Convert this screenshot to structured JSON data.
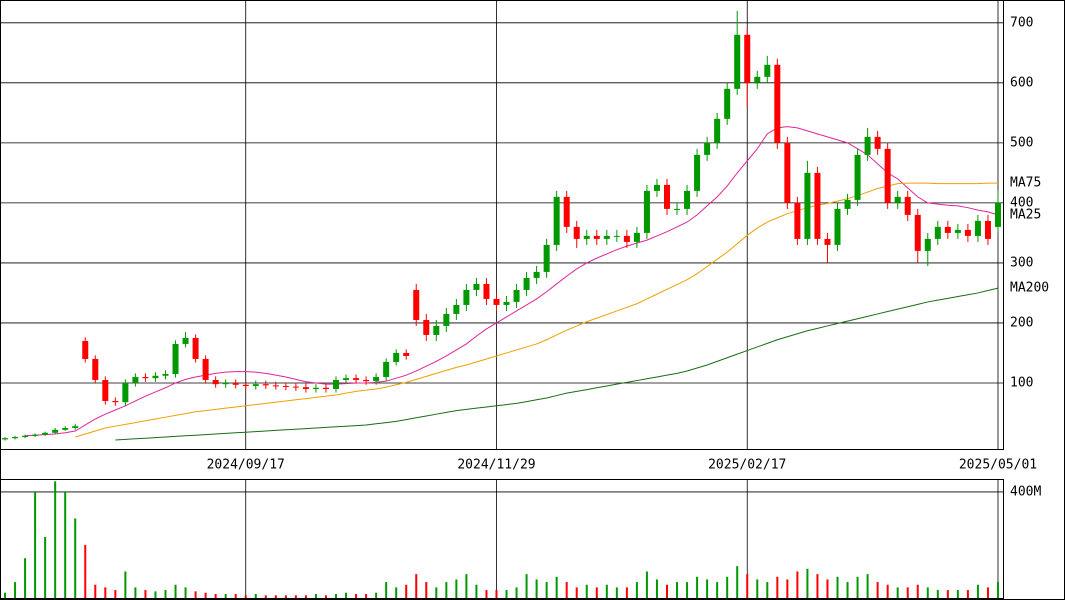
{
  "chart_data": [
    {
      "type": "candlestick",
      "categories": [
        null,
        null,
        null,
        null,
        null,
        null,
        null,
        null,
        null,
        null,
        null,
        null,
        null,
        null,
        null,
        null,
        null,
        null,
        null,
        null,
        null,
        null,
        null,
        null,
        "2024/09/17",
        null,
        null,
        null,
        null,
        null,
        null,
        null,
        null,
        null,
        null,
        null,
        null,
        null,
        null,
        null,
        null,
        null,
        null,
        null,
        null,
        null,
        null,
        null,
        null,
        "2024/11/29",
        null,
        null,
        null,
        null,
        null,
        null,
        null,
        null,
        null,
        null,
        null,
        null,
        null,
        null,
        null,
        null,
        null,
        null,
        null,
        null,
        null,
        null,
        null,
        null,
        "2025/02/17",
        null,
        null,
        null,
        null,
        null,
        null,
        null,
        null,
        null,
        null,
        null,
        null,
        null,
        null,
        null,
        null,
        null,
        null,
        null,
        null,
        null,
        null,
        null,
        null,
        "2025/05/01"
      ],
      "open": [
        6,
        8,
        10,
        12,
        14,
        17,
        22,
        25,
        170,
        140,
        105,
        70,
        68,
        100,
        110,
        108,
        112,
        115,
        165,
        175,
        140,
        105,
        98,
        100,
        97,
        95,
        98,
        96,
        95,
        94,
        93,
        90,
        92,
        90,
        105,
        108,
        105,
        103,
        110,
        135,
        150,
        255,
        205,
        180,
        195,
        215,
        230,
        255,
        265,
        240,
        230,
        235,
        255,
        275,
        285,
        330,
        410,
        360,
        340,
        345,
        340,
        345,
        345,
        335,
        350,
        420,
        430,
        390,
        390,
        420,
        480,
        500,
        540,
        590,
        680,
        600,
        610,
        630,
        500,
        400,
        340,
        450,
        340,
        330,
        390,
        405,
        480,
        510,
        490,
        400,
        410,
        380,
        320,
        340,
        360,
        350,
        355,
        345,
        370,
        360
      ],
      "high": [
        10,
        12,
        14,
        16,
        19,
        25,
        28,
        32,
        176,
        146,
        111,
        76,
        106,
        116,
        116,
        118,
        121,
        171,
        185,
        181,
        146,
        111,
        106,
        106,
        103,
        104,
        104,
        102,
        101,
        100,
        99,
        98,
        98,
        111,
        114,
        114,
        111,
        116,
        141,
        156,
        156,
        265,
        215,
        205,
        225,
        240,
        265,
        275,
        275,
        250,
        245,
        265,
        285,
        295,
        340,
        420,
        420,
        370,
        355,
        355,
        355,
        355,
        355,
        360,
        430,
        440,
        440,
        400,
        430,
        490,
        510,
        550,
        600,
        720,
        690,
        620,
        645,
        640,
        510,
        410,
        470,
        460,
        350,
        400,
        415,
        490,
        525,
        520,
        500,
        420,
        420,
        390,
        350,
        370,
        370,
        365,
        365,
        380,
        380,
        420
      ],
      "low": [
        4,
        6,
        8,
        10,
        12,
        15,
        20,
        22,
        134,
        99,
        64,
        62,
        62,
        94,
        102,
        102,
        106,
        109,
        159,
        134,
        99,
        92,
        92,
        91,
        89,
        89,
        90,
        89,
        88,
        87,
        84,
        84,
        84,
        84,
        99,
        99,
        97,
        97,
        104,
        129,
        139,
        195,
        170,
        170,
        185,
        205,
        220,
        245,
        230,
        220,
        220,
        225,
        245,
        265,
        275,
        320,
        350,
        325,
        330,
        330,
        330,
        335,
        325,
        325,
        340,
        410,
        380,
        380,
        380,
        410,
        470,
        490,
        530,
        580,
        560,
        590,
        600,
        490,
        390,
        330,
        330,
        330,
        300,
        320,
        380,
        395,
        470,
        480,
        390,
        390,
        370,
        300,
        295,
        330,
        340,
        340,
        335,
        335,
        330,
        350
      ],
      "close": [
        8,
        10,
        12,
        14,
        17,
        22,
        25,
        28,
        140,
        105,
        70,
        68,
        100,
        110,
        108,
        112,
        115,
        165,
        175,
        140,
        105,
        98,
        100,
        97,
        95,
        98,
        96,
        95,
        94,
        93,
        90,
        92,
        90,
        105,
        108,
        105,
        103,
        110,
        135,
        150,
        145,
        205,
        180,
        195,
        215,
        230,
        255,
        265,
        240,
        230,
        235,
        255,
        275,
        285,
        330,
        410,
        360,
        340,
        345,
        340,
        345,
        345,
        335,
        350,
        420,
        430,
        390,
        390,
        420,
        480,
        500,
        540,
        590,
        680,
        600,
        610,
        630,
        500,
        400,
        340,
        450,
        340,
        330,
        390,
        405,
        480,
        510,
        490,
        400,
        410,
        380,
        320,
        340,
        360,
        350,
        355,
        345,
        370,
        340,
        400
      ],
      "up_color": "#009900",
      "down_color": "#ff0000",
      "series": [
        {
          "name": "MA25",
          "color": "#e0249a",
          "values": [
            null,
            null,
            12,
            13,
            14,
            15,
            17,
            20,
            30,
            40,
            48,
            55,
            62,
            70,
            78,
            85,
            92,
            100,
            106,
            110,
            113,
            116,
            118,
            119,
            119,
            118,
            116,
            113,
            110,
            106,
            102,
            100,
            98,
            98,
            99,
            100,
            100,
            101,
            103,
            108,
            113,
            120,
            128,
            136,
            145,
            155,
            165,
            178,
            190,
            200,
            210,
            220,
            230,
            240,
            252,
            265,
            278,
            290,
            300,
            308,
            315,
            322,
            328,
            333,
            338,
            345,
            352,
            360,
            368,
            380,
            395,
            410,
            428,
            450,
            470,
            490,
            515,
            525,
            527,
            525,
            520,
            515,
            510,
            505,
            500,
            490,
            480,
            465,
            450,
            440,
            425,
            410,
            400,
            398,
            396,
            395,
            392,
            388,
            385,
            380
          ]
        },
        {
          "name": "MA75",
          "color": "#f0a000",
          "values": [
            null,
            null,
            null,
            null,
            null,
            null,
            null,
            10,
            15,
            20,
            25,
            28,
            31,
            34,
            37,
            40,
            43,
            46,
            49,
            52,
            54,
            56,
            58,
            60,
            62,
            64,
            66,
            68,
            70,
            72,
            74,
            76,
            78,
            80,
            83,
            86,
            88,
            90,
            93,
            97,
            101,
            106,
            111,
            116,
            121,
            126,
            130,
            135,
            140,
            145,
            150,
            155,
            160,
            165,
            172,
            180,
            188,
            195,
            202,
            208,
            214,
            220,
            226,
            232,
            240,
            248,
            256,
            264,
            272,
            282,
            294,
            306,
            318,
            332,
            346,
            358,
            368,
            375,
            382,
            387,
            392,
            396,
            399,
            403,
            407,
            412,
            418,
            424,
            428,
            432,
            433,
            433,
            433,
            432,
            432,
            432,
            432,
            432,
            433,
            433
          ]
        },
        {
          "name": "MA200",
          "color": "#1a6b1a",
          "values": [
            null,
            null,
            null,
            null,
            null,
            null,
            null,
            null,
            null,
            null,
            null,
            5,
            6,
            7,
            8,
            9,
            10,
            11,
            12,
            13,
            14,
            15,
            16,
            17,
            18,
            19,
            20,
            21,
            22,
            23,
            24,
            25,
            26,
            27,
            28,
            29,
            30,
            32,
            34,
            36,
            39,
            42,
            45,
            48,
            51,
            54,
            56,
            58,
            60,
            62,
            64,
            66,
            69,
            72,
            75,
            79,
            83,
            86,
            89,
            92,
            95,
            98,
            101,
            104,
            107,
            110,
            113,
            116,
            120,
            125,
            130,
            136,
            142,
            148,
            154,
            160,
            166,
            172,
            177,
            182,
            187,
            191,
            195,
            199,
            203,
            207,
            211,
            215,
            219,
            223,
            227,
            231,
            235,
            238,
            241,
            244,
            247,
            250,
            254,
            258
          ]
        }
      ],
      "ylim": [
        -10,
        738
      ],
      "yticks": [
        100,
        200,
        300,
        400,
        500,
        600,
        700
      ],
      "grid": true
    },
    {
      "type": "bar",
      "values": [
        20,
        60,
        150,
        400,
        230,
        440,
        400,
        300,
        200,
        50,
        40,
        30,
        100,
        40,
        30,
        25,
        30,
        50,
        40,
        25,
        20,
        15,
        15,
        15,
        10,
        15,
        10,
        10,
        10,
        10,
        10,
        15,
        10,
        15,
        20,
        15,
        15,
        20,
        60,
        40,
        50,
        90,
        60,
        40,
        60,
        70,
        90,
        50,
        30,
        30,
        30,
        40,
        90,
        70,
        60,
        80,
        60,
        40,
        50,
        40,
        50,
        40,
        40,
        60,
        100,
        70,
        50,
        60,
        60,
        80,
        70,
        60,
        80,
        120,
        90,
        70,
        60,
        80,
        70,
        100,
        110,
        90,
        70,
        80,
        60,
        80,
        90,
        60,
        50,
        40,
        40,
        50,
        40,
        30,
        30,
        30,
        30,
        50,
        40,
        60
      ],
      "ylim": [
        0,
        445
      ],
      "yticks": [
        {
          "value": 400,
          "label": "400M"
        }
      ]
    }
  ]
}
